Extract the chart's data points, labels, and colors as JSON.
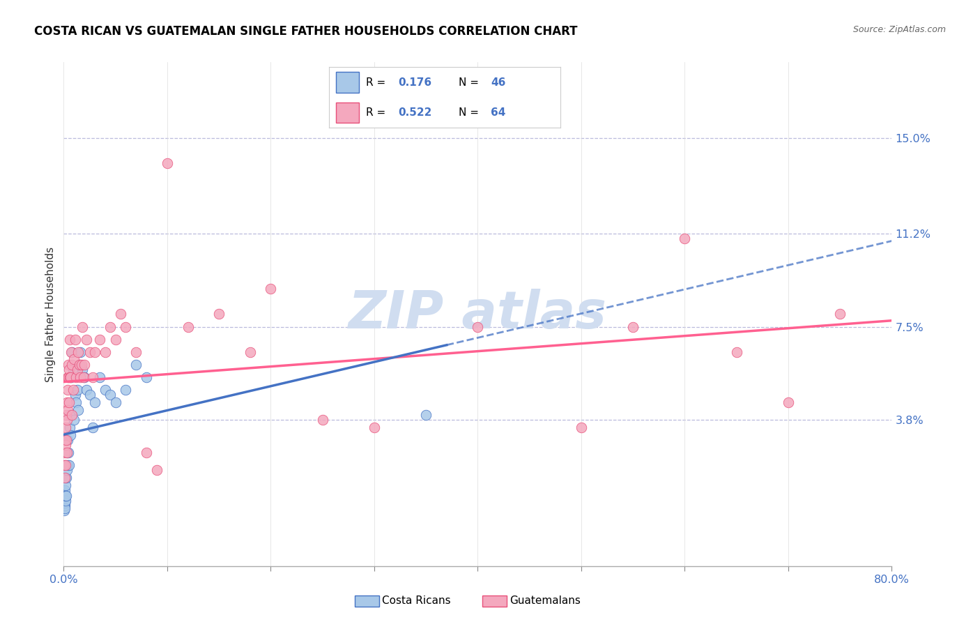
{
  "title": "COSTA RICAN VS GUATEMALAN SINGLE FATHER HOUSEHOLDS CORRELATION CHART",
  "source": "Source: ZipAtlas.com",
  "ylabel": "Single Father Households",
  "xlim": [
    0.0,
    80.0
  ],
  "ylim": [
    -2.0,
    18.0
  ],
  "ytick_vals": [
    3.8,
    7.5,
    11.2,
    15.0
  ],
  "ytick_labels": [
    "3.8%",
    "7.5%",
    "11.2%",
    "15.0%"
  ],
  "xtick_vals": [
    0.0,
    10.0,
    20.0,
    30.0,
    40.0,
    50.0,
    60.0,
    70.0,
    80.0
  ],
  "color_cr_fill": "#A8C8E8",
  "color_cr_edge": "#4472C4",
  "color_gt_fill": "#F4A8BE",
  "color_gt_edge": "#E8507A",
  "line_cr_color": "#4472C4",
  "line_gt_color": "#FF6090",
  "watermark_color": "#D0DDF0",
  "background": "#FFFFFF",
  "cr_R": "0.176",
  "cr_N": "46",
  "gt_R": "0.522",
  "gt_N": "64",
  "cr_x": [
    0.05,
    0.08,
    0.09,
    0.1,
    0.12,
    0.13,
    0.15,
    0.16,
    0.17,
    0.18,
    0.2,
    0.22,
    0.25,
    0.28,
    0.3,
    0.35,
    0.4,
    0.45,
    0.5,
    0.55,
    0.6,
    0.65,
    0.7,
    0.8,
    0.9,
    1.0,
    1.1,
    1.2,
    1.3,
    1.4,
    1.5,
    1.6,
    1.8,
    2.0,
    2.2,
    2.5,
    2.8,
    3.0,
    3.5,
    4.0,
    4.5,
    5.0,
    6.0,
    7.0,
    8.0,
    35.0
  ],
  "cr_y": [
    0.2,
    0.4,
    0.8,
    0.5,
    1.0,
    0.3,
    1.5,
    0.6,
    1.2,
    0.8,
    2.0,
    1.5,
    0.8,
    1.8,
    2.5,
    2.0,
    3.0,
    2.5,
    2.0,
    3.5,
    4.0,
    3.2,
    5.5,
    6.5,
    5.8,
    3.8,
    4.8,
    4.5,
    5.0,
    4.2,
    6.0,
    6.5,
    5.8,
    5.5,
    5.0,
    4.8,
    3.5,
    4.5,
    5.5,
    5.0,
    4.8,
    4.5,
    5.0,
    6.0,
    5.5,
    4.0
  ],
  "gt_x": [
    0.05,
    0.08,
    0.1,
    0.12,
    0.15,
    0.18,
    0.2,
    0.22,
    0.25,
    0.28,
    0.3,
    0.32,
    0.35,
    0.38,
    0.4,
    0.42,
    0.45,
    0.48,
    0.5,
    0.55,
    0.6,
    0.65,
    0.7,
    0.75,
    0.8,
    0.9,
    1.0,
    1.1,
    1.2,
    1.3,
    1.4,
    1.5,
    1.6,
    1.7,
    1.8,
    1.9,
    2.0,
    2.2,
    2.5,
    2.8,
    3.0,
    3.5,
    4.0,
    4.5,
    5.0,
    5.5,
    6.0,
    7.0,
    8.0,
    9.0,
    10.0,
    12.0,
    15.0,
    18.0,
    20.0,
    25.0,
    30.0,
    40.0,
    50.0,
    55.0,
    60.0,
    65.0,
    70.0,
    75.0
  ],
  "gt_y": [
    2.0,
    1.5,
    3.0,
    2.5,
    2.0,
    3.5,
    2.8,
    4.0,
    3.0,
    2.5,
    3.8,
    4.5,
    5.5,
    5.0,
    4.2,
    5.5,
    6.0,
    5.8,
    4.5,
    5.5,
    7.0,
    5.5,
    6.5,
    6.0,
    4.0,
    5.0,
    6.2,
    7.0,
    5.5,
    5.8,
    6.5,
    6.0,
    5.5,
    6.0,
    7.5,
    5.5,
    6.0,
    7.0,
    6.5,
    5.5,
    6.5,
    7.0,
    6.5,
    7.5,
    7.0,
    8.0,
    7.5,
    6.5,
    2.5,
    1.8,
    14.0,
    7.5,
    8.0,
    6.5,
    9.0,
    3.8,
    3.5,
    7.5,
    3.5,
    7.5,
    11.0,
    6.5,
    4.5,
    8.0
  ]
}
